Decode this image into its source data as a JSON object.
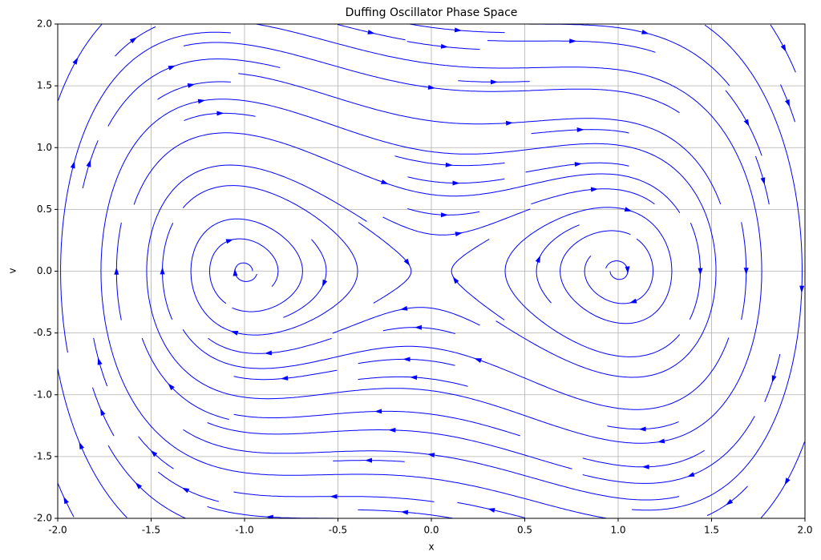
{
  "chart_data": {
    "type": "streamplot",
    "title": "Duffing Oscillator Phase Space",
    "xlabel": "x",
    "ylabel": "v",
    "xlim": [
      -2,
      2
    ],
    "ylim": [
      -2,
      2
    ],
    "xticks": [
      {
        "value": -2,
        "label": "-2.0"
      },
      {
        "value": -1.5,
        "label": "-1.5"
      },
      {
        "value": -1,
        "label": "-1.0"
      },
      {
        "value": -0.5,
        "label": "-0.5"
      },
      {
        "value": 0,
        "label": "0.0"
      },
      {
        "value": 0.5,
        "label": "0.5"
      },
      {
        "value": 1,
        "label": "1.0"
      },
      {
        "value": 1.5,
        "label": "1.5"
      },
      {
        "value": 2,
        "label": "2.0"
      }
    ],
    "yticks": [
      {
        "value": -2,
        "label": "-2.0"
      },
      {
        "value": -1.5,
        "label": "-1.5"
      },
      {
        "value": -1,
        "label": "-1.0"
      },
      {
        "value": -0.5,
        "label": "-0.5"
      },
      {
        "value": 0,
        "label": "0.0"
      },
      {
        "value": 0.5,
        "label": "0.5"
      },
      {
        "value": 1,
        "label": "1.0"
      },
      {
        "value": 1.5,
        "label": "1.5"
      },
      {
        "value": 2,
        "label": "2.0"
      }
    ],
    "grid": true,
    "color": "#0000ff"
  }
}
